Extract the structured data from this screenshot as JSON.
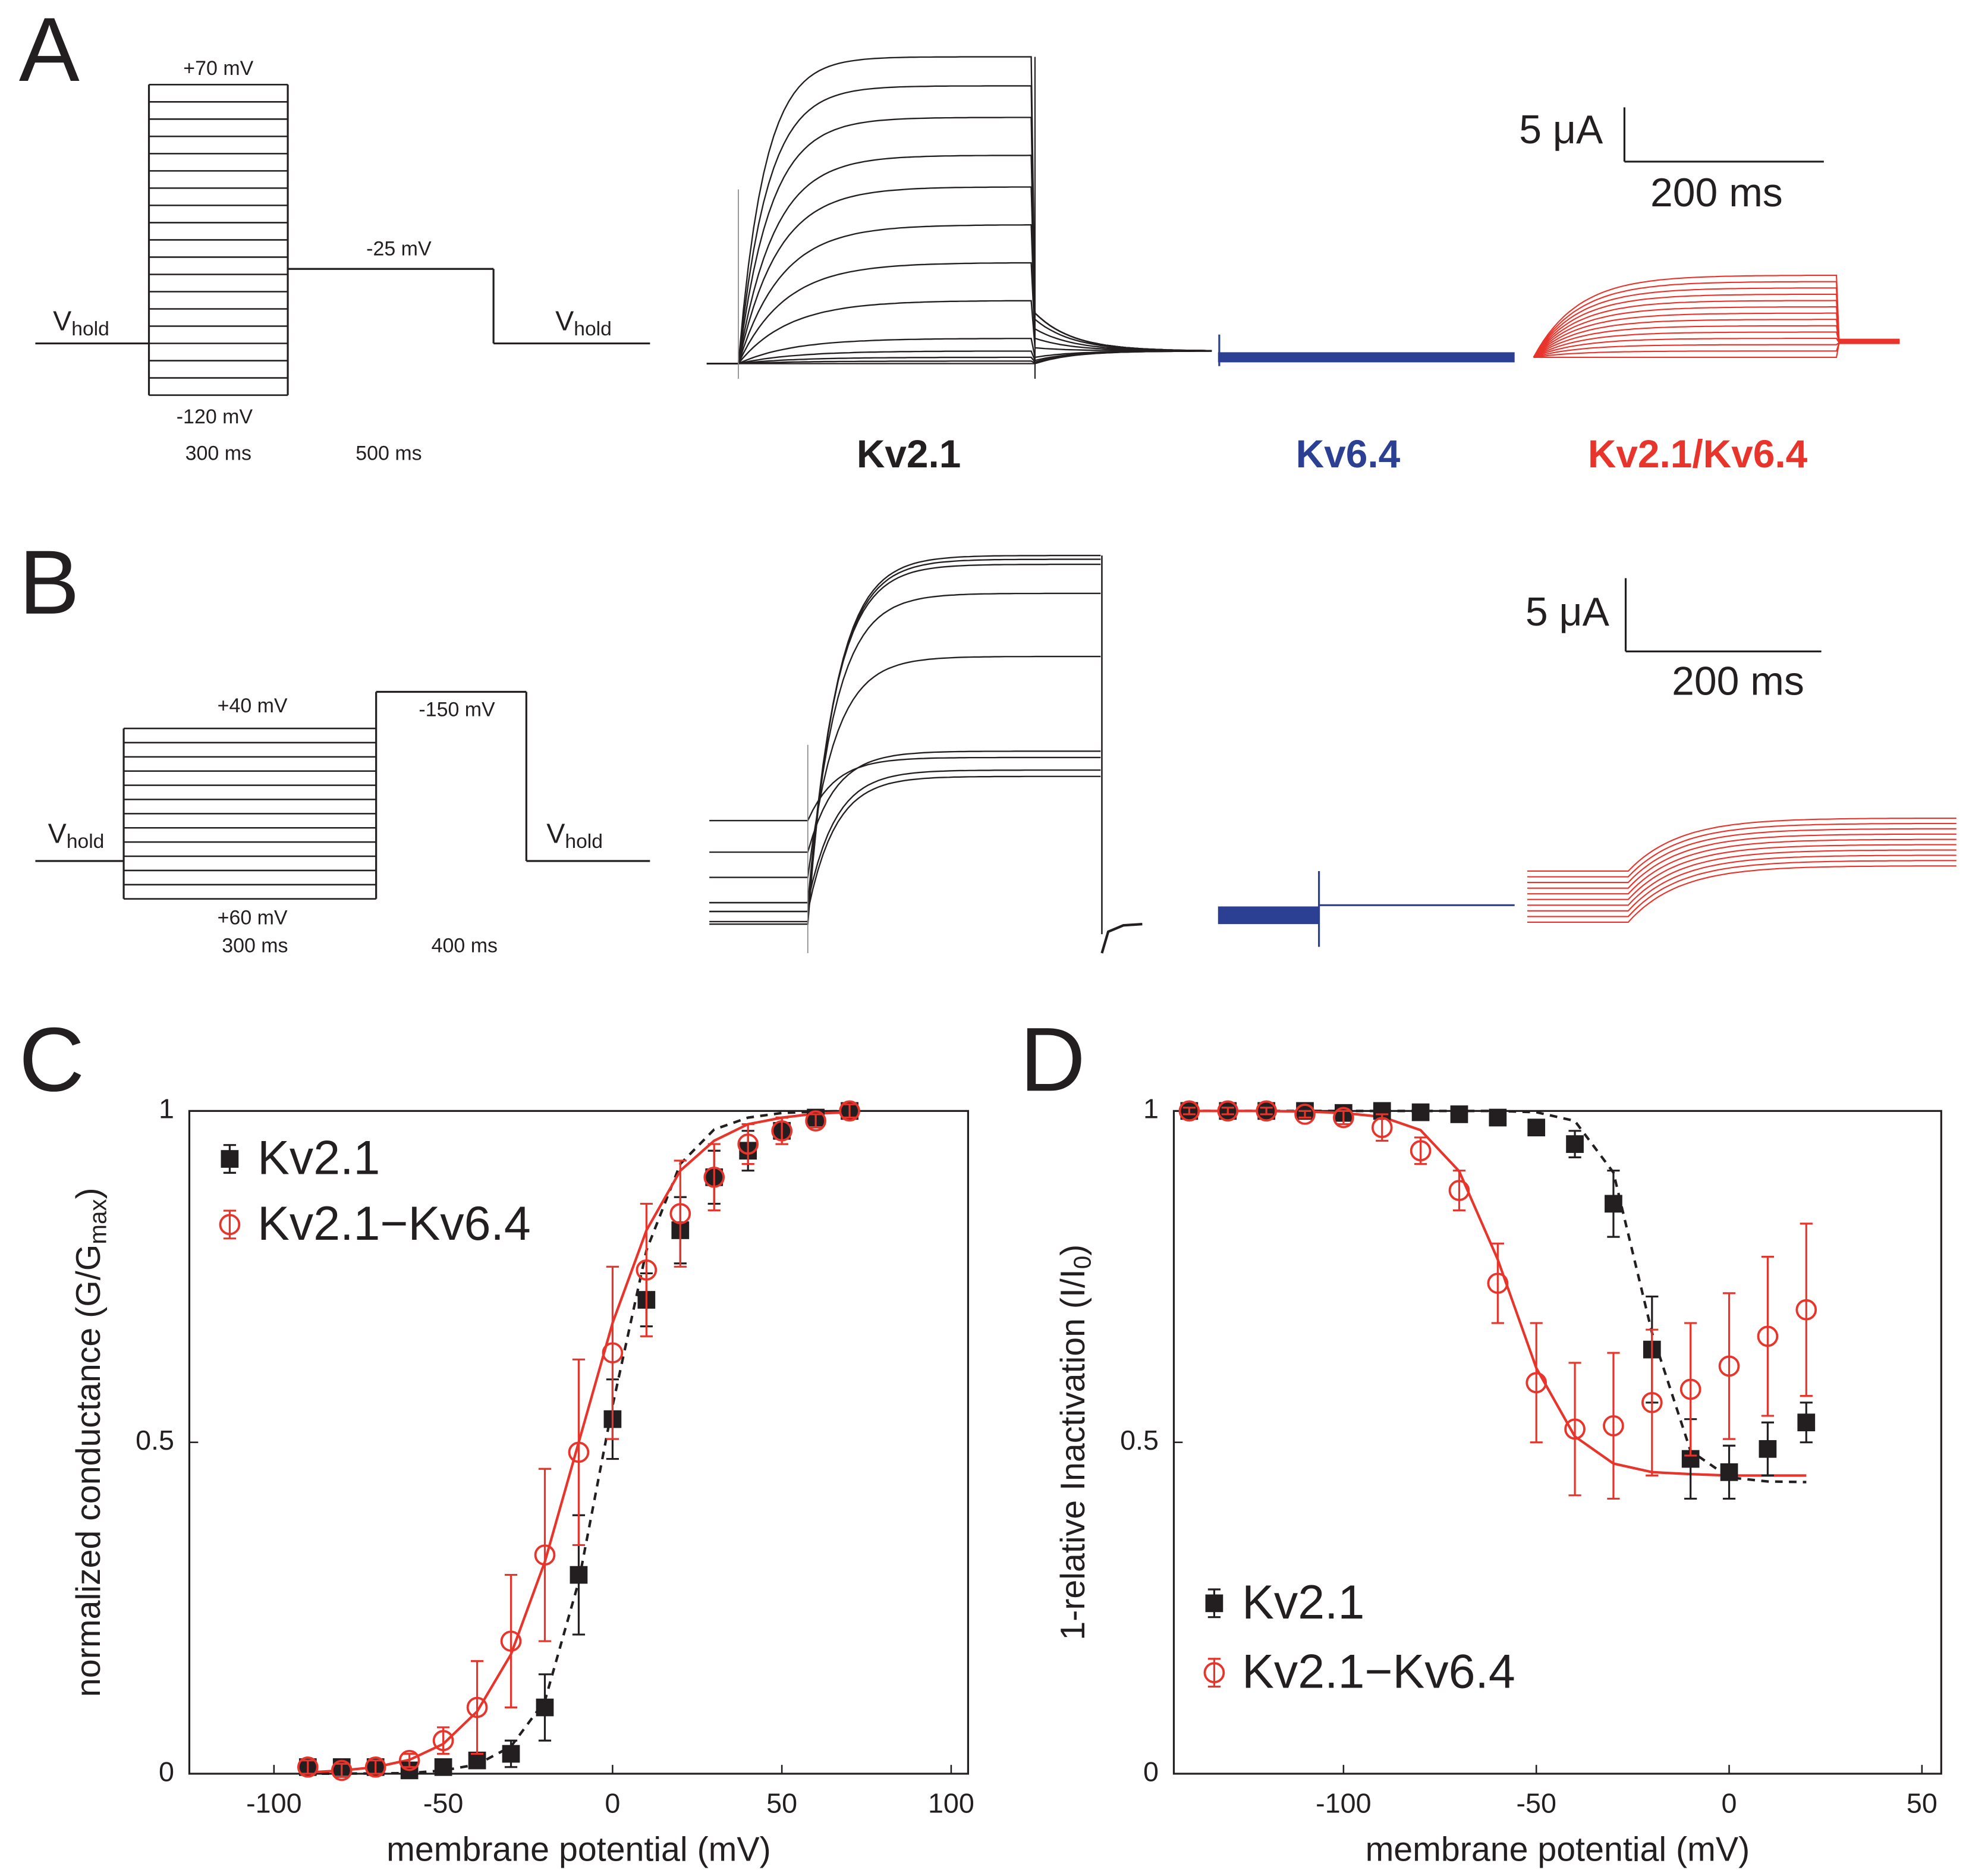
{
  "panel_labels": [
    "A",
    "B",
    "C",
    "D"
  ],
  "protocol_a": {
    "labels": [
      "+70 mV",
      "-120 mV",
      "-25 mV",
      "300 ms",
      "500 ms"
    ],
    "vhold": [
      "V",
      "hold"
    ]
  },
  "protocol_b": {
    "labels": [
      "+40 mV",
      "-150 mV",
      "+60 mV",
      "300 ms",
      "400 ms"
    ],
    "vhold": [
      "V",
      "hold"
    ]
  },
  "scale_a": [
    "5 μA",
    "200 ms"
  ],
  "scale_b": [
    "5 μA",
    "200 ms"
  ],
  "channels": {
    "names": [
      "Kv2.1",
      "Kv6.4",
      "Kv2.1/Kv6.4"
    ],
    "colors": [
      "#231f20",
      "#2b3f93",
      "#e8342a"
    ]
  },
  "chart_data": [
    {
      "type": "errorbar",
      "x_label": "membrane potential (mV)",
      "y_label_parts": [
        "normalized conductance (G/G",
        "max",
        ")"
      ],
      "xlim": [
        -125,
        105
      ],
      "ylim": [
        0,
        1
      ],
      "xticks": [
        -100,
        -50,
        0,
        50,
        100
      ],
      "yticks": [
        0,
        0.5,
        1
      ],
      "legend": "upper left",
      "x": [
        -90,
        -80,
        -70,
        -60,
        -50,
        -40,
        -30,
        -20,
        -10,
        0,
        10,
        20,
        30,
        40,
        50,
        60,
        70
      ],
      "series": [
        {
          "name": "Kv2.1",
          "color": "#231f20",
          "marker": "square",
          "values": [
            0.01,
            0.01,
            0.01,
            0.005,
            0.01,
            0.02,
            0.03,
            0.1,
            0.3,
            0.535,
            0.715,
            0.82,
            0.9,
            0.94,
            0.97,
            0.99,
            1.0
          ],
          "errors": [
            0.01,
            0.01,
            0.01,
            0.01,
            0.01,
            0.01,
            0.02,
            0.05,
            0.09,
            0.06,
            0.04,
            0.05,
            0.04,
            0.03,
            0.02,
            0.01,
            0.01
          ]
        },
        {
          "name": "Kv2.1−Kv6.4",
          "color": "#e8342a",
          "marker": "circle",
          "values": [
            0.01,
            0.005,
            0.01,
            0.02,
            0.05,
            0.1,
            0.2,
            0.33,
            0.485,
            0.635,
            0.76,
            0.845,
            0.9,
            0.95,
            0.97,
            0.985,
            1.0
          ],
          "errors": [
            0.01,
            0.01,
            0.01,
            0.01,
            0.02,
            0.07,
            0.1,
            0.13,
            0.14,
            0.13,
            0.1,
            0.08,
            0.05,
            0.03,
            0.02,
            0.01,
            0.01
          ]
        }
      ],
      "fits": [
        {
          "color": "#231f20",
          "dashed": true,
          "values": [
            0,
            0.0001,
            0.0003,
            0.001,
            0.005,
            0.014,
            0.041,
            0.11,
            0.29,
            0.555,
            0.79,
            0.92,
            0.972,
            0.99,
            0.997,
            0.999,
            1.0
          ]
        },
        {
          "color": "#e8342a",
          "dashed": false,
          "values": [
            0.002,
            0.005,
            0.01,
            0.021,
            0.045,
            0.094,
            0.18,
            0.32,
            0.5,
            0.68,
            0.82,
            0.91,
            0.955,
            0.98,
            0.99,
            0.996,
            0.998
          ]
        }
      ]
    },
    {
      "type": "errorbar",
      "x_label": "membrane potential (mV)",
      "y_label_parts": [
        "1-relative Inactivation (I/I",
        "0",
        ")"
      ],
      "xlim": [
        -144,
        55
      ],
      "ylim": [
        0,
        1
      ],
      "xticks": [
        -100,
        -50,
        0,
        50
      ],
      "yticks": [
        0,
        0.5,
        1
      ],
      "legend": "lower left",
      "x": [
        -140,
        -130,
        -120,
        -110,
        -100,
        -90,
        -80,
        -70,
        -60,
        -50,
        -40,
        -30,
        -20,
        -10,
        0,
        10,
        20
      ],
      "series": [
        {
          "name": "Kv2.1",
          "color": "#231f20",
          "marker": "square",
          "values": [
            1.0,
            1.0,
            1.0,
            1.0,
            0.997,
            1.0,
            0.998,
            0.995,
            0.99,
            0.975,
            0.95,
            0.86,
            0.64,
            0.475,
            0.455,
            0.49,
            0.53
          ],
          "errors": [
            0.005,
            0.005,
            0.005,
            0.005,
            0.005,
            0.005,
            0.005,
            0.005,
            0.01,
            0.01,
            0.02,
            0.05,
            0.08,
            0.06,
            0.04,
            0.04,
            0.03
          ]
        },
        {
          "name": "Kv2.1−Kv6.4",
          "color": "#e8342a",
          "marker": "circle",
          "values": [
            1.0,
            1.0,
            1.0,
            0.995,
            0.99,
            0.975,
            0.94,
            0.88,
            0.74,
            0.59,
            0.52,
            0.525,
            0.56,
            0.58,
            0.615,
            0.66,
            0.7
          ],
          "errors": [
            0.005,
            0.005,
            0.005,
            0.005,
            0.01,
            0.02,
            0.02,
            0.03,
            0.06,
            0.09,
            0.1,
            0.11,
            0.11,
            0.1,
            0.11,
            0.12,
            0.13
          ]
        }
      ],
      "fits": [
        {
          "color": "#231f20",
          "dashed": true,
          "values": [
            1.0,
            1.0,
            1.0,
            1.0,
            1.0,
            1.0,
            1.0,
            1.0,
            1.0,
            0.998,
            0.985,
            0.907,
            0.665,
            0.487,
            0.447,
            0.441,
            0.44
          ]
        },
        {
          "color": "#e8342a",
          "dashed": false,
          "values": [
            1.0,
            1.0,
            1.0,
            0.999,
            0.997,
            0.991,
            0.971,
            0.909,
            0.776,
            0.612,
            0.509,
            0.468,
            0.455,
            0.452,
            0.45,
            0.45,
            0.45
          ]
        }
      ]
    }
  ]
}
